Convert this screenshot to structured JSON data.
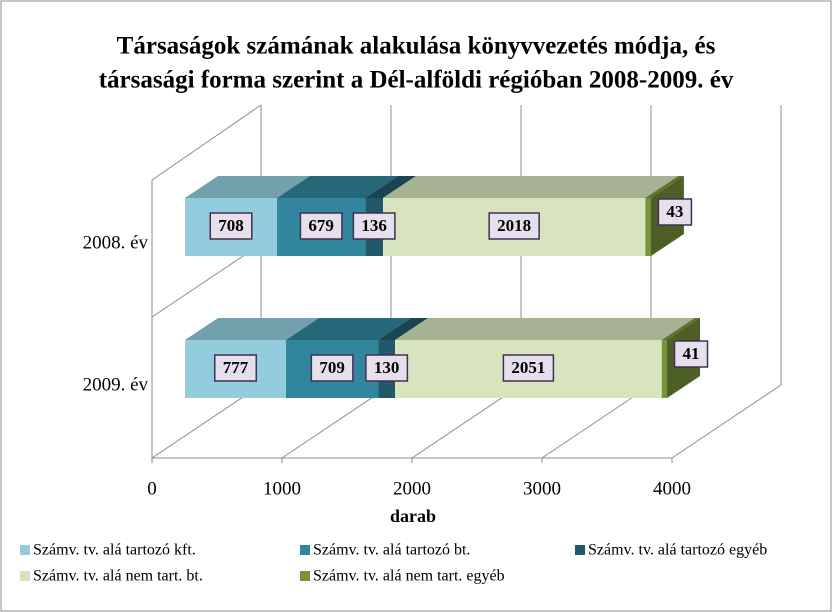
{
  "chart_data": {
    "type": "bar3d_stacked_horizontal",
    "title": [
      "Társaságok számának alakulása könyvvezetés módja, és",
      "társasági forma szerint a Dél-alföldi régióban 2008-2009. év"
    ],
    "x_label": "darab",
    "categories": [
      "2008. év",
      "2009. év"
    ],
    "series": [
      {
        "name": "Számv. tv. alá tartozó kft.",
        "color": "#93cddd",
        "values": [
          708,
          777
        ]
      },
      {
        "name": "Számv. tv. alá tartozó bt.",
        "color": "#31859c",
        "values": [
          679,
          709
        ]
      },
      {
        "name": "Számv. tv. alá tartozó egyéb",
        "color": "#215968",
        "values": [
          136,
          130
        ]
      },
      {
        "name": "Számv. tv. alá nem tart. bt.",
        "color": "#d7e4bd",
        "values": [
          2018,
          2051
        ]
      },
      {
        "name": "Számv. tv. alá nem tart. egyéb",
        "color": "#77933c",
        "values": [
          43,
          41
        ]
      }
    ],
    "xlim": [
      0,
      4000
    ],
    "xticks": [
      0,
      1000,
      2000,
      3000,
      4000
    ],
    "grid": true
  }
}
